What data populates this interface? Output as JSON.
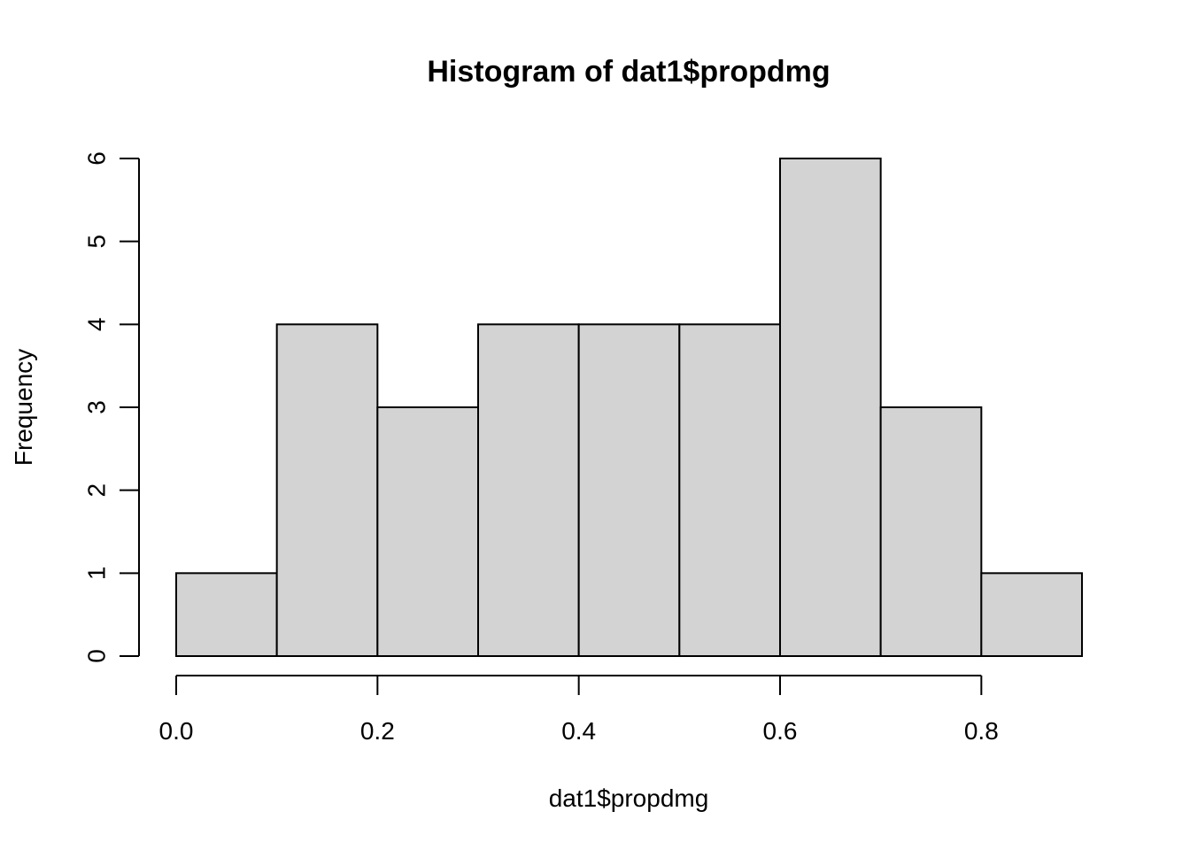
{
  "chart_data": {
    "type": "bar",
    "title": "Histogram of dat1$propdmg",
    "xlabel": "dat1$propdmg",
    "ylabel": "Frequency",
    "bins": [
      {
        "start": 0.0,
        "end": 0.1,
        "count": 1
      },
      {
        "start": 0.1,
        "end": 0.2,
        "count": 4
      },
      {
        "start": 0.2,
        "end": 0.3,
        "count": 3
      },
      {
        "start": 0.3,
        "end": 0.4,
        "count": 4
      },
      {
        "start": 0.4,
        "end": 0.5,
        "count": 4
      },
      {
        "start": 0.5,
        "end": 0.6,
        "count": 4
      },
      {
        "start": 0.6,
        "end": 0.7,
        "count": 6
      },
      {
        "start": 0.7,
        "end": 0.8,
        "count": 3
      },
      {
        "start": 0.8,
        "end": 0.9,
        "count": 1
      }
    ],
    "xlim": [
      0.0,
      0.9
    ],
    "ylim": [
      0,
      6
    ],
    "x_ticks": [
      "0.0",
      "0.2",
      "0.4",
      "0.6",
      "0.8"
    ],
    "y_ticks": [
      "0",
      "1",
      "2",
      "3",
      "4",
      "5",
      "6"
    ],
    "grid": false,
    "bar_color": "#d3d3d3",
    "bar_border_color": "#000000"
  }
}
